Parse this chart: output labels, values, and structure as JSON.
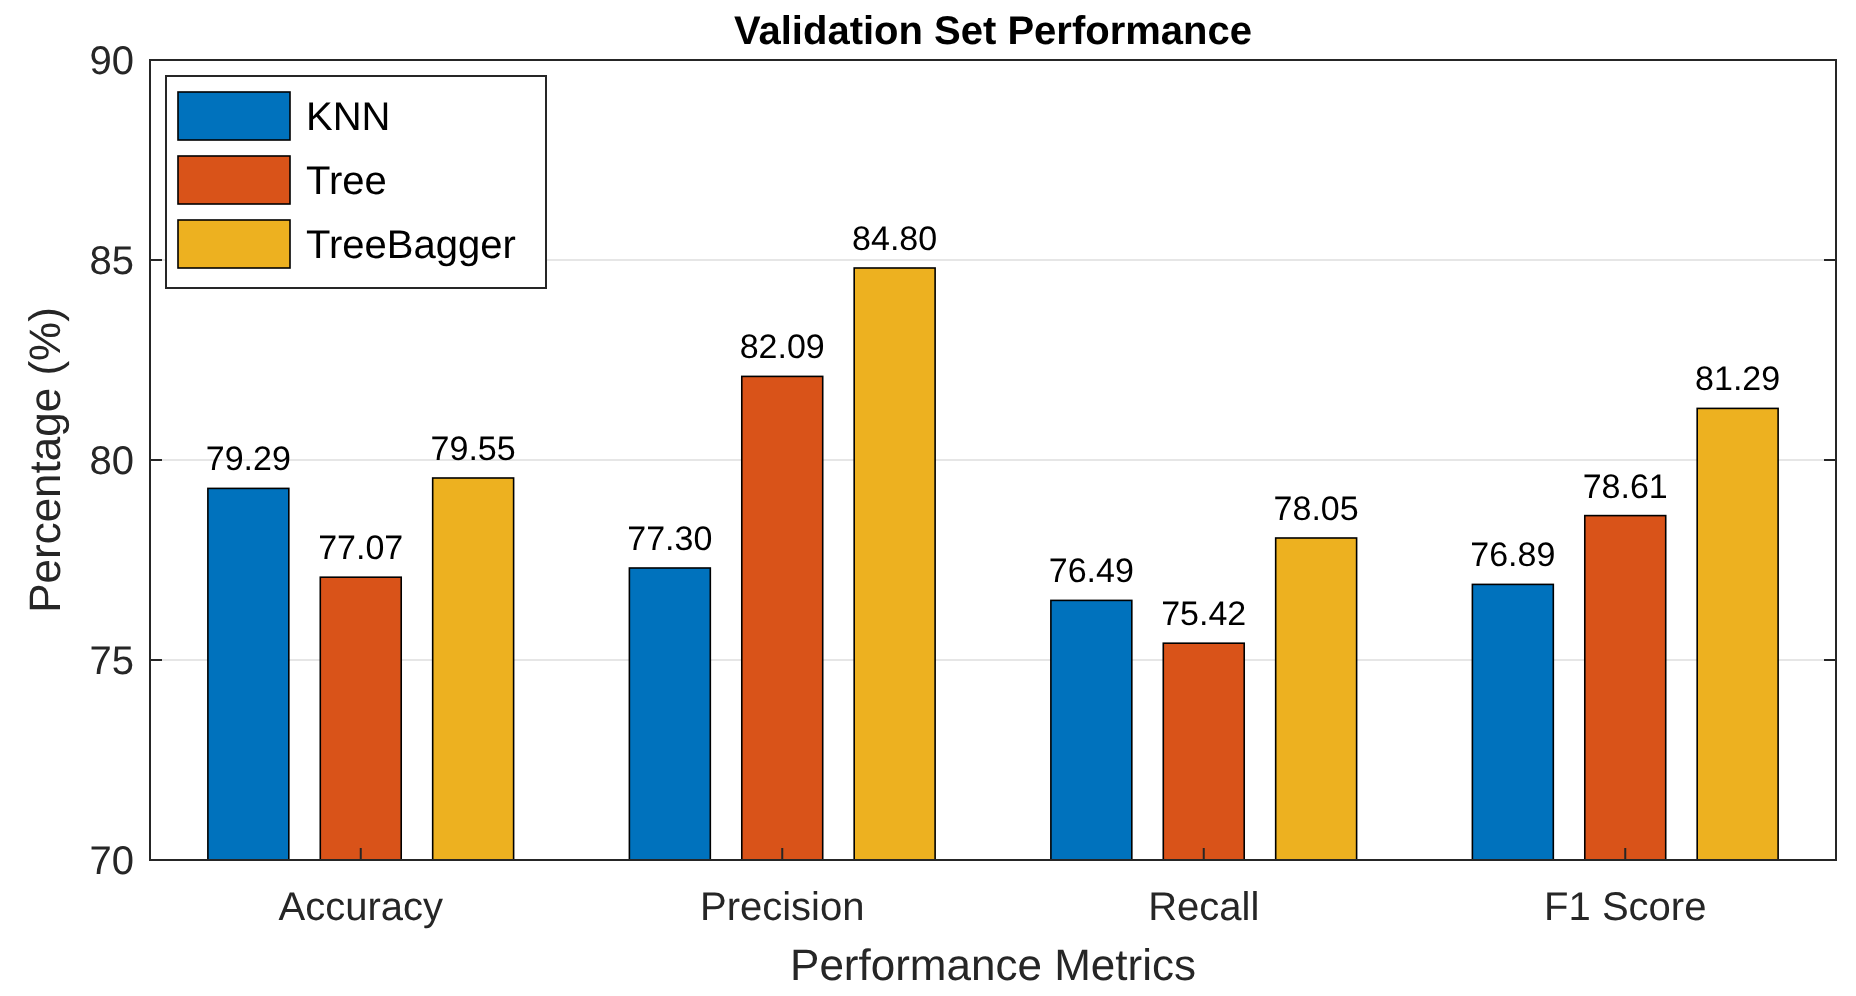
{
  "chart_data": {
    "type": "bar",
    "title": "Validation Set Performance",
    "xlabel": "Performance Metrics",
    "ylabel": "Percentage (%)",
    "categories": [
      "Accuracy",
      "Precision",
      "Recall",
      "F1 Score"
    ],
    "series": [
      {
        "name": "KNN",
        "color": "#0072bd",
        "values": [
          79.29,
          77.3,
          76.49,
          76.89
        ],
        "value_labels": [
          "79.29",
          "77.30",
          "76.49",
          "76.89"
        ]
      },
      {
        "name": "Tree",
        "color": "#d95319",
        "values": [
          77.07,
          82.09,
          75.42,
          78.61
        ],
        "value_labels": [
          "77.07",
          "82.09",
          "75.42",
          "78.61"
        ]
      },
      {
        "name": "TreeBagger",
        "color": "#edb120",
        "values": [
          79.55,
          84.8,
          78.05,
          81.29
        ],
        "value_labels": [
          "79.55",
          "84.80",
          "78.05",
          "81.29"
        ]
      }
    ],
    "ylim": [
      70,
      90
    ],
    "yticks": [
      70,
      75,
      80,
      85,
      90
    ],
    "grid": "y",
    "legend": "top left"
  }
}
